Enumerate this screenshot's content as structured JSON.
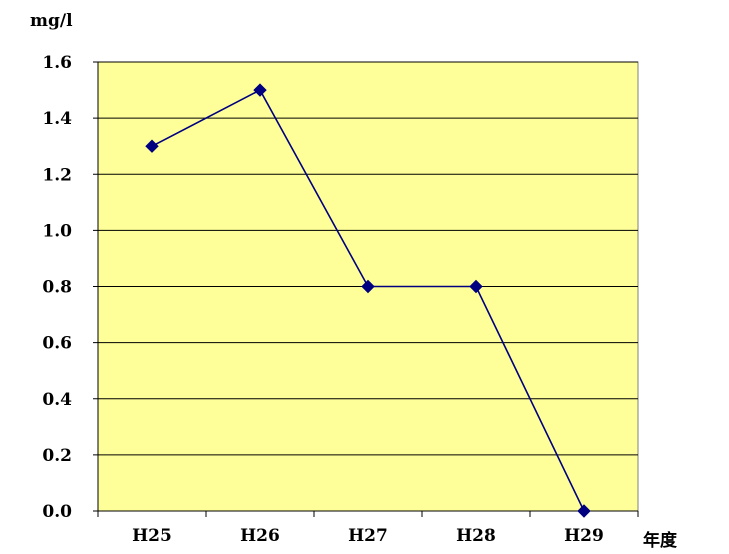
{
  "chart_data": {
    "type": "line",
    "categories": [
      "H25",
      "H26",
      "H27",
      "H28",
      "H29"
    ],
    "series": [
      {
        "values": [
          1.3,
          1.5,
          0.8,
          0.8,
          0.0
        ]
      }
    ],
    "xlabel": "年度",
    "ylabel": "mg/l",
    "ylim": [
      0,
      1.6
    ],
    "yticks": [
      "0.0",
      "0.2",
      "0.4",
      "0.6",
      "0.8",
      "1.0",
      "1.2",
      "1.4",
      "1.6"
    ],
    "grid": true,
    "colors": {
      "plot_background": "#ffff99",
      "line": "#000080",
      "marker": "#000080",
      "grid": "#000000"
    }
  }
}
